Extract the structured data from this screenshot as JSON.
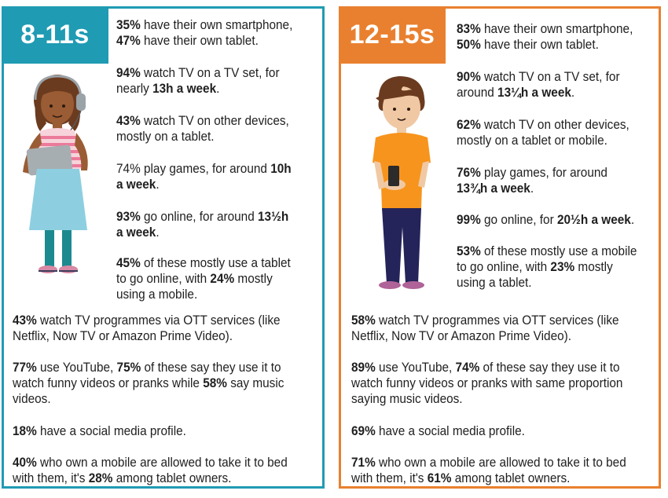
{
  "left": {
    "age": "8-11s",
    "top_stats": [
      [
        [
          "35%",
          true
        ],
        [
          " have their own smartphone,",
          false
        ],
        [
          "\n",
          false
        ],
        [
          "47%",
          true
        ],
        [
          " have their own tablet.",
          false
        ]
      ],
      [
        [
          "94%",
          true
        ],
        [
          " watch TV on a TV set, for",
          false
        ],
        [
          "\n",
          false
        ],
        [
          "nearly ",
          false
        ],
        [
          "13h a week",
          true
        ],
        [
          ".",
          false
        ]
      ],
      [
        [
          "43%",
          true
        ],
        [
          " watch TV on other devices,",
          false
        ],
        [
          "\n",
          false
        ],
        [
          "mostly on a tablet.",
          false
        ]
      ],
      [
        [
          "74%",
          false
        ],
        [
          " play games, for around ",
          false
        ],
        [
          "10h",
          true
        ],
        [
          "\n",
          false
        ],
        [
          "a week",
          true
        ],
        [
          ".",
          false
        ]
      ],
      [
        [
          "93%",
          true
        ],
        [
          " go online, for around ",
          false
        ],
        [
          "13½h",
          true
        ],
        [
          "\n",
          false
        ],
        [
          "a week",
          true
        ],
        [
          ".",
          false
        ]
      ],
      [
        [
          "45%",
          true
        ],
        [
          " of these mostly use a tablet",
          false
        ],
        [
          "\n",
          false
        ],
        [
          "to go online, with ",
          false
        ],
        [
          "24%",
          true
        ],
        [
          " mostly",
          false
        ],
        [
          "\n",
          false
        ],
        [
          "using a mobile.",
          false
        ]
      ]
    ],
    "bottom_stats": [
      [
        [
          "43%",
          true
        ],
        [
          " watch TV programmes via OTT services (like",
          false
        ],
        [
          "\n",
          false
        ],
        [
          "Netflix, Now TV or Amazon Prime Video).",
          false
        ]
      ],
      [
        [
          "77%",
          true
        ],
        [
          " use YouTube, ",
          false
        ],
        [
          "75%",
          true
        ],
        [
          " of these say they use it to",
          false
        ],
        [
          "\n",
          false
        ],
        [
          "watch funny videos or pranks while ",
          false
        ],
        [
          "58%",
          true
        ],
        [
          " say music",
          false
        ],
        [
          "\n",
          false
        ],
        [
          "videos.",
          false
        ]
      ],
      [
        [
          "18%",
          true
        ],
        [
          " have a social media profile.",
          false
        ]
      ],
      [
        [
          "40%",
          true
        ],
        [
          " who own a mobile are allowed to take it to bed",
          false
        ],
        [
          "\n",
          false
        ],
        [
          "with them, it's ",
          false
        ],
        [
          "28%",
          true
        ],
        [
          " among tablet owners.",
          false
        ]
      ]
    ]
  },
  "right": {
    "age": "12-15s",
    "top_stats": [
      [
        [
          "83%",
          true
        ],
        [
          " have their own smartphone,",
          false
        ],
        [
          "\n",
          false
        ],
        [
          "50%",
          true
        ],
        [
          " have their own tablet.",
          false
        ]
      ],
      [
        [
          "90%",
          true
        ],
        [
          " watch TV on a TV set, for",
          false
        ],
        [
          "\n",
          false
        ],
        [
          "around ",
          false
        ],
        [
          "13¼h a week",
          true
        ],
        [
          ".",
          false
        ]
      ],
      [
        [
          "62%",
          true
        ],
        [
          " watch TV on other devices,",
          false
        ],
        [
          "\n",
          false
        ],
        [
          "mostly on a tablet or mobile.",
          false
        ]
      ],
      [
        [
          "76%",
          true
        ],
        [
          " play games, for around",
          false
        ],
        [
          "\n",
          false
        ],
        [
          "13¾h a week",
          true
        ],
        [
          ".",
          false
        ]
      ],
      [
        [
          "99%",
          true
        ],
        [
          " go online, for ",
          false
        ],
        [
          "20½h a week",
          true
        ],
        [
          ".",
          false
        ]
      ],
      [
        [
          "53%",
          true
        ],
        [
          " of these mostly use a mobile",
          false
        ],
        [
          "\n",
          false
        ],
        [
          "to go online, with ",
          false
        ],
        [
          "23%",
          true
        ],
        [
          " mostly",
          false
        ],
        [
          "\n",
          false
        ],
        [
          "using a tablet.",
          false
        ]
      ]
    ],
    "bottom_stats": [
      [
        [
          "58%",
          true
        ],
        [
          " watch TV programmes via OTT services (like",
          false
        ],
        [
          "\n",
          false
        ],
        [
          "Netflix, Now TV or Amazon Prime Video).",
          false
        ]
      ],
      [
        [
          "89%",
          true
        ],
        [
          " use YouTube, ",
          false
        ],
        [
          "74%",
          true
        ],
        [
          " of these say they use it to",
          false
        ],
        [
          "\n",
          false
        ],
        [
          "watch funny videos or pranks with same proportion",
          false
        ],
        [
          "\n",
          false
        ],
        [
          "saying music videos.",
          false
        ]
      ],
      [
        [
          "69%",
          true
        ],
        [
          " have a social media profile.",
          false
        ]
      ],
      [
        [
          "71%",
          true
        ],
        [
          " who own a mobile are allowed to take it to bed",
          false
        ],
        [
          "\n",
          false
        ],
        [
          "with them, it's ",
          false
        ],
        [
          "61%",
          true
        ],
        [
          " among tablet owners.",
          false
        ]
      ]
    ]
  },
  "colors": {
    "left_accent": "#1f9bb3",
    "right_accent": "#e9802f"
  },
  "icons": {
    "left_figure": "girl-with-tablet-icon",
    "right_figure": "boy-with-phone-icon"
  }
}
